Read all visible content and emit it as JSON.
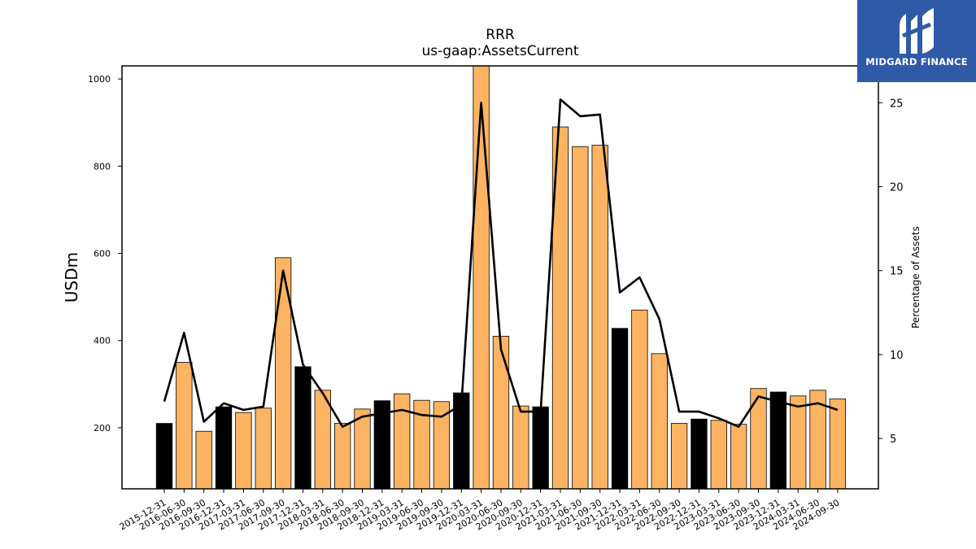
{
  "chart_data": {
    "type": "bar",
    "title": "RRR",
    "subtitle": "us-gaap:AssetsCurrent",
    "ylabel": "USDm",
    "y2label": "Percentage of Assets",
    "ylim": [
      60,
      1030
    ],
    "y2lim": [
      2,
      27.2
    ],
    "yticks": [
      200,
      400,
      600,
      800,
      1000
    ],
    "y2ticks": [
      5,
      10,
      15,
      20,
      25
    ],
    "categories": [
      "2015-12-31",
      "2016-06-30",
      "2016-09-30",
      "2016-12-31",
      "2017-03-31",
      "2017-06-30",
      "2017-09-30",
      "2017-12-31",
      "2018-03-31",
      "2018-06-30",
      "2018-09-30",
      "2018-12-31",
      "2019-03-31",
      "2019-06-30",
      "2019-09-30",
      "2019-12-31",
      "2020-03-31",
      "2020-06-30",
      "2020-09-30",
      "2020-12-31",
      "2021-03-31",
      "2021-06-30",
      "2021-09-30",
      "2021-12-31",
      "2022-03-31",
      "2022-06-30",
      "2022-09-30",
      "2022-12-31",
      "2023-03-31",
      "2023-06-30",
      "2023-09-30",
      "2023-12-31",
      "2024-03-31",
      "2024-06-30",
      "2024-09-30"
    ],
    "series": [
      {
        "kind": "bar",
        "values": [
          210,
          350,
          192,
          248,
          235,
          245,
          590,
          340,
          286,
          210,
          243,
          262,
          278,
          263,
          260,
          280,
          1030,
          410,
          250,
          248,
          890,
          845,
          848,
          428,
          470,
          370,
          210,
          220,
          217,
          208,
          290,
          282,
          273,
          286,
          266
        ],
        "colors": [
          "#000000",
          "#fdb462",
          "#fdb462",
          "#000000",
          "#fdb462",
          "#fdb462",
          "#fdb462",
          "#000000",
          "#fdb462",
          "#fdb462",
          "#fdb462",
          "#000000",
          "#fdb462",
          "#fdb462",
          "#fdb462",
          "#000000",
          "#fdb462",
          "#fdb462",
          "#fdb462",
          "#000000",
          "#fdb462",
          "#fdb462",
          "#fdb462",
          "#000000",
          "#fdb462",
          "#fdb462",
          "#fdb462",
          "#000000",
          "#fdb462",
          "#fdb462",
          "#fdb462",
          "#000000",
          "#fdb462",
          "#fdb462",
          "#fdb462"
        ]
      },
      {
        "kind": "line",
        "axis": "right",
        "color": "#000000",
        "values": [
          7.2,
          11.3,
          6.0,
          7.1,
          6.7,
          6.9,
          15.0,
          9.4,
          7.7,
          5.7,
          6.3,
          6.5,
          6.7,
          6.4,
          6.3,
          7.0,
          25.0,
          10.3,
          6.6,
          6.6,
          25.2,
          24.2,
          24.3,
          13.7,
          14.6,
          12.1,
          6.6,
          6.6,
          6.2,
          5.7,
          7.5,
          7.2,
          6.9,
          7.1,
          6.7
        ]
      }
    ]
  },
  "logo": {
    "text": "MIDGARD FINANCE",
    "background": "#2f5aa8"
  }
}
